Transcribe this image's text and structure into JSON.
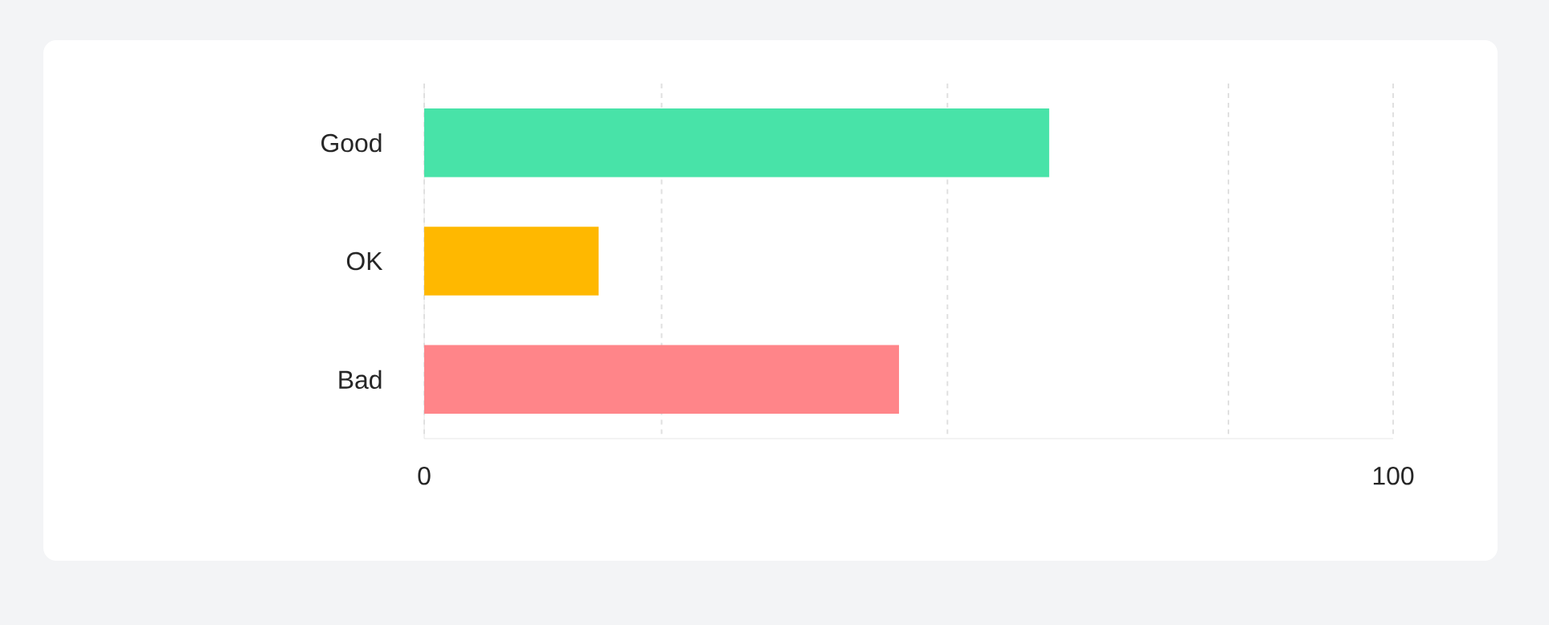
{
  "chart_data": {
    "type": "bar",
    "orientation": "horizontal",
    "categories": [
      "Good",
      "OK",
      "Bad"
    ],
    "values": [
      64.5,
      18,
      49
    ],
    "colors": [
      "#48e3a8",
      "#ffb800",
      "#ff8589"
    ],
    "xlim": [
      0,
      100
    ],
    "xticks": [
      0,
      {
        "value": 24.5,
        "label": null
      },
      {
        "value": 54,
        "label": null
      },
      {
        "value": 83,
        "label": null
      },
      100
    ],
    "grid": "x"
  }
}
